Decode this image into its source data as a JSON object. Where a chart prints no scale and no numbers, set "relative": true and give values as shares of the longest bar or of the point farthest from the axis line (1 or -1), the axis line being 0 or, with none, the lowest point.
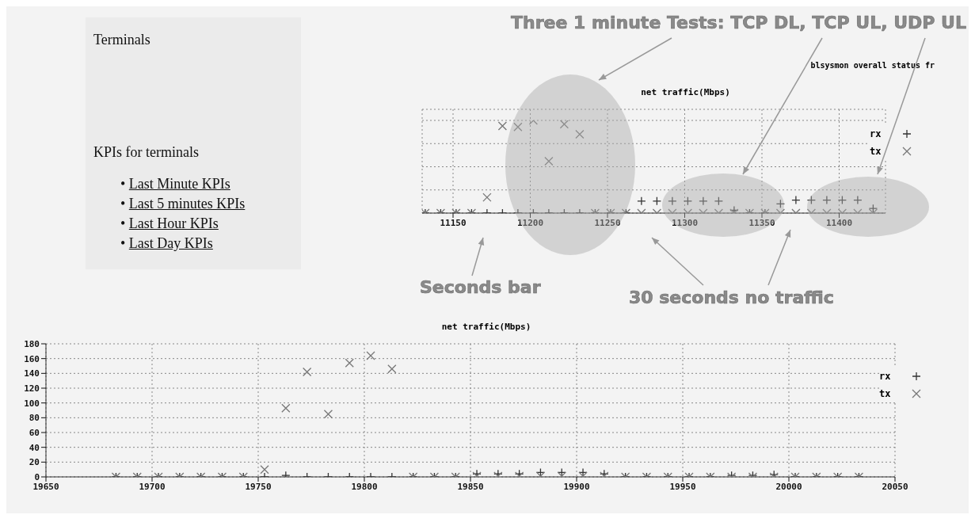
{
  "chart_data": [
    {
      "type": "other",
      "title": "Terminals",
      "subtitle": "KPIs for terminals",
      "annotations": [
        "• Last Minute KPIs",
        "• Last 5 minutes KPIs",
        "• Last Hour KPIs",
        "• Last Day KPIs"
      ]
    },
    {
      "type": "scatter",
      "title": "net traffic(Mbps)",
      "relative": true,
      "xlim": [
        11130,
        11430
      ],
      "xticks": [
        11150,
        11200,
        11250,
        11300,
        11350,
        11400
      ],
      "grid": true,
      "legend": "top right",
      "marker": "cross",
      "annotations": [
        "Three 1 minute Tests: TCP DL, TCP UL, UDP UL",
        "Seconds bar",
        "30 seconds no traffic",
        "blsysmon overall status fr"
      ],
      "x": [
        11132,
        11142,
        11152,
        11162,
        11172,
        11182,
        11192,
        11202,
        11212,
        11222,
        11232,
        11242,
        11252,
        11262,
        11272,
        11282,
        11292,
        11302,
        11312,
        11322,
        11332,
        11342,
        11352,
        11362,
        11372,
        11382,
        11392,
        11402,
        11412,
        11422
      ],
      "series": [
        {
          "name": "rx",
          "color": "#333333",
          "values": [
            0,
            0,
            0,
            0,
            0,
            0,
            0,
            0,
            0,
            0,
            0,
            0,
            0,
            0,
            0.13,
            0.13,
            0.13,
            0.13,
            0.13,
            0.13,
            0.03,
            0,
            0,
            0.1,
            0.14,
            0.14,
            0.14,
            0.14,
            0.14,
            0.05
          ]
        },
        {
          "name": "tx",
          "color": "#777777",
          "values": [
            0,
            0,
            0,
            0,
            0.17,
            0.94,
            0.93,
            1,
            0.56,
            0.96,
            0.85,
            0,
            0,
            0,
            0,
            0,
            0,
            0,
            0,
            0,
            0,
            0,
            0,
            0,
            0,
            0,
            0,
            0,
            0,
            0
          ]
        }
      ]
    },
    {
      "type": "scatter",
      "title": "net traffic(Mbps)",
      "xlim": [
        19650,
        20050
      ],
      "xticks": [
        19650,
        19700,
        19750,
        19800,
        19850,
        19900,
        19950,
        20000,
        20050
      ],
      "ylim": [
        0,
        180
      ],
      "yticks": [
        0,
        20,
        40,
        60,
        80,
        100,
        120,
        140,
        160,
        180
      ],
      "grid": true,
      "legend": "top right",
      "marker": "cross",
      "x": [
        19683,
        19693,
        19703,
        19713,
        19723,
        19733,
        19743,
        19753,
        19763,
        19773,
        19783,
        19793,
        19803,
        19813,
        19823,
        19833,
        19843,
        19853,
        19863,
        19873,
        19883,
        19893,
        19903,
        19913,
        19923,
        19933,
        19943,
        19953,
        19963,
        19973,
        19983,
        19993,
        20003,
        20013,
        20023,
        20033
      ],
      "series": [
        {
          "name": "rx",
          "color": "#333333",
          "values": [
            0,
            0,
            0,
            0,
            0,
            0,
            0,
            0,
            2,
            0,
            0,
            0,
            0,
            0,
            0,
            0,
            0,
            4,
            4,
            4,
            6,
            6,
            6,
            4,
            0,
            0,
            0,
            0,
            0,
            2,
            2,
            3,
            0,
            0,
            0,
            0
          ]
        },
        {
          "name": "tx",
          "color": "#777777",
          "values": [
            0,
            0,
            0,
            0,
            0,
            0,
            0,
            10,
            93,
            142,
            85,
            154,
            164,
            146,
            0,
            0,
            0,
            1,
            1,
            1,
            1,
            1,
            1,
            1,
            0,
            0,
            0,
            0,
            0,
            0,
            0,
            0,
            0,
            0,
            0,
            0
          ]
        }
      ]
    }
  ]
}
